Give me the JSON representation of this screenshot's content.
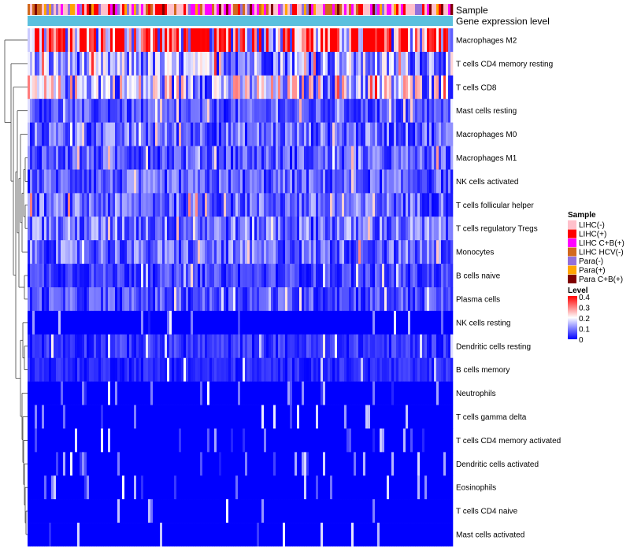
{
  "chart_data": {
    "type": "heatmap",
    "tracks": {
      "sample": "Sample",
      "gene_expression": "Gene expression level"
    },
    "rows": [
      {
        "label": "Macrophages M2",
        "mean": 0.3
      },
      {
        "label": "T cells CD4 memory resting",
        "mean": 0.12
      },
      {
        "label": "T cells CD8",
        "mean": 0.16
      },
      {
        "label": "Mast cells resting",
        "mean": 0.06
      },
      {
        "label": "Macrophages M0",
        "mean": 0.08
      },
      {
        "label": "Macrophages M1",
        "mean": 0.07
      },
      {
        "label": "NK cells activated",
        "mean": 0.07
      },
      {
        "label": "T cells follicular helper",
        "mean": 0.08
      },
      {
        "label": "T cells regulatory  Tregs",
        "mean": 0.09
      },
      {
        "label": "Monocytes",
        "mean": 0.08
      },
      {
        "label": "B cells naive",
        "mean": 0.05
      },
      {
        "label": "Plasma cells",
        "mean": 0.06
      },
      {
        "label": "NK cells resting",
        "mean": 0.02
      },
      {
        "label": "Dendritic cells resting",
        "mean": 0.04
      },
      {
        "label": "B cells memory",
        "mean": 0.03
      },
      {
        "label": "Neutrophils",
        "mean": 0.01
      },
      {
        "label": "T cells gamma delta",
        "mean": 0.01
      },
      {
        "label": "T cells CD4 memory activated",
        "mean": 0.01
      },
      {
        "label": "Dendritic cells activated",
        "mean": 0.01
      },
      {
        "label": "Eosinophils",
        "mean": 0.01
      },
      {
        "label": "T cells CD4 naive",
        "mean": 0.01
      },
      {
        "label": "Mast cells activated",
        "mean": 0.01
      }
    ],
    "sample_legend": {
      "title": "Sample",
      "entries": [
        {
          "label": "LIHC(-)",
          "color": "#ffc0cb"
        },
        {
          "label": "LIHC(+)",
          "color": "#ff0000"
        },
        {
          "label": "LIHC C+B(+)",
          "color": "#ff00ff"
        },
        {
          "label": "LIHC HCV(-)",
          "color": "#d2691e"
        },
        {
          "label": "Para(-)",
          "color": "#9370db"
        },
        {
          "label": "Para(+)",
          "color": "#ffa500"
        },
        {
          "label": "Para C+B(+)",
          "color": "#800000"
        }
      ]
    },
    "level_legend": {
      "title": "Level",
      "ticks": [
        "0.4",
        "0.3",
        "0.2",
        "0.1",
        "0"
      ],
      "range": [
        0,
        0.4
      ]
    },
    "gene_expression_color": "#5bc0de",
    "color_scale": [
      "#0000ff",
      "#ffffff",
      "#ff0000"
    ],
    "legend_position": "right"
  }
}
